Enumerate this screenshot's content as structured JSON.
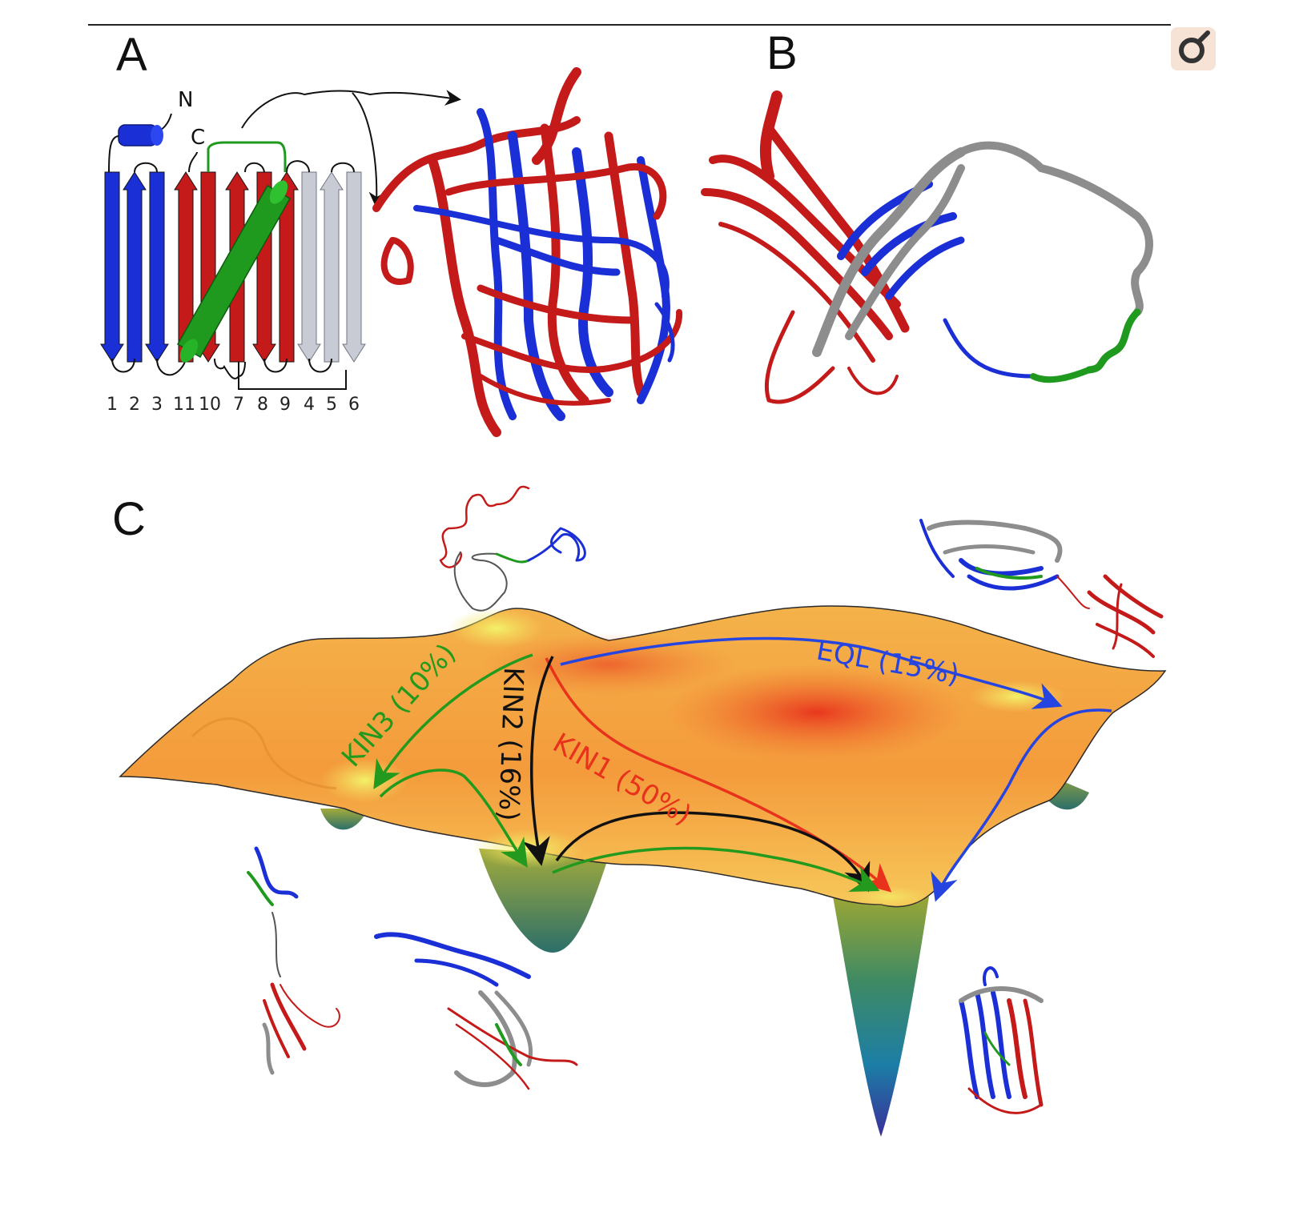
{
  "figure": {
    "panel_labels": {
      "a": "A",
      "b": "B",
      "c": "C"
    },
    "topology": {
      "n_terminus": "N",
      "c_terminus": "C",
      "strand_numbers": [
        "1",
        "2",
        "3",
        "11",
        "10",
        "7",
        "8",
        "9",
        "4",
        "5",
        "6"
      ]
    },
    "pathways": {
      "kin1": "KIN1 (50%)",
      "kin2": "KIN2 (16%)",
      "kin3": "KIN3 (10%)",
      "eql": "EQL (15%)"
    },
    "colors": {
      "blue_segment": "#1a2fd6",
      "red_segment": "#c41a1a",
      "grey_segment": "#c8cbd3",
      "green_segment": "#1f9a1f",
      "kin1_arrow": "#e8321c",
      "kin2_arrow": "#111111",
      "kin3_arrow": "#239a1d",
      "eql_arrow": "#2645e0"
    },
    "viewer_icon": "magnifier-toggle-icon"
  }
}
